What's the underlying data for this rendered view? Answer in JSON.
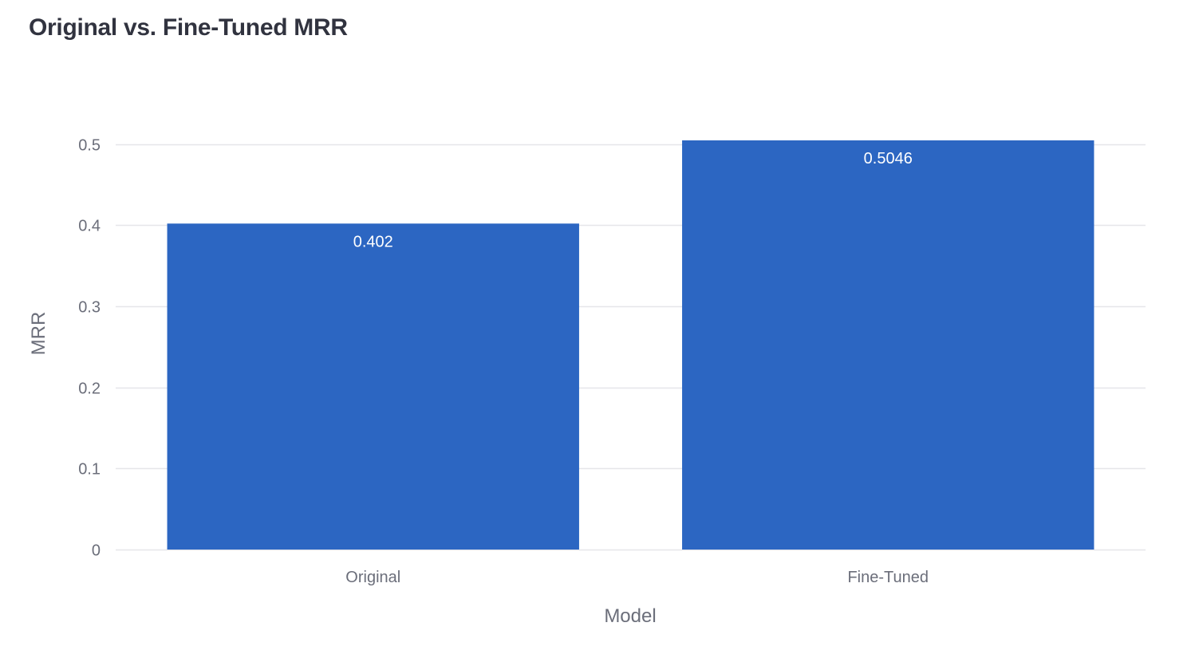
{
  "chart_data": {
    "type": "bar",
    "title": "Original vs. Fine-Tuned MRR",
    "xlabel": "Model",
    "ylabel": "MRR",
    "categories": [
      "Original",
      "Fine-Tuned"
    ],
    "values": [
      0.402,
      0.5046
    ],
    "data_labels": [
      "0.402",
      "0.5046"
    ],
    "yticks": [
      0,
      0.1,
      0.2,
      0.3,
      0.4,
      0.5
    ],
    "ytick_labels": [
      "0",
      "0.1",
      "0.2",
      "0.3",
      "0.4",
      "0.5"
    ],
    "ylim": [
      0,
      0.5046
    ],
    "grid": true,
    "legend": "none",
    "colors": {
      "bar": "#2c66c2",
      "grid": "#e6e6e9",
      "axis_text": "#6b6e7a",
      "title": "#31333f",
      "data_label": "#ffffff"
    }
  }
}
